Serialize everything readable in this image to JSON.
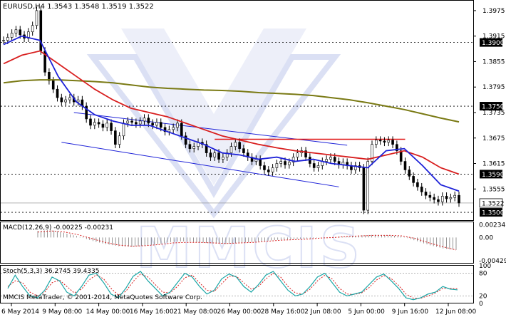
{
  "title": "EURUSD,H4  1.3543 1.3548 1.3519 1.3522",
  "colors": {
    "ma_fast": "#1e22d8",
    "ma_mid": "#d81e1e",
    "ma_slow": "#7a7a14",
    "level_label_bg": "#000000",
    "current_label_bg": "#ffffff",
    "channel": "#1e22d8",
    "resistance": "#e01414",
    "macd_signal": "#d81e1e",
    "stoch_main": "#1aa6a6",
    "stoch_signal": "#d81e1e",
    "watermark": "#9aa8e0"
  },
  "watermark": "MMCIS",
  "footer": "MMCIS MetaTrader, © 2001-2014, MetaQuotes Software Corp.",
  "price_panel": {
    "ticks": [
      "1.3975",
      "1.3915",
      "1.3855",
      "1.3795",
      "1.3735",
      "1.3675",
      "1.3615",
      "1.3555"
    ],
    "levels": [
      {
        "label": "1.3900",
        "value": 1.39
      },
      {
        "label": "1.3750",
        "value": 1.375
      },
      {
        "label": "1.3590",
        "value": 1.359
      },
      {
        "label": "1.3500",
        "value": 1.35
      }
    ],
    "current": {
      "label": "1.3522",
      "value": 1.3522
    }
  },
  "macd_panel": {
    "label": "MACD(12,26,9) -0.00225 -0.00231",
    "ticks": [
      "0.00234",
      "0.00",
      "-0.00429"
    ]
  },
  "stoch_panel": {
    "label": "Stoch(5,3,3) 36.2745 39.4335",
    "ticks": [
      "100",
      "80",
      "20",
      "0"
    ]
  },
  "x_axis": [
    "6 May 2014",
    "9 May 08:00",
    "14 May 00:00",
    "16 May 16:00",
    "21 May 08:00",
    "26 May 00:00",
    "28 May 16:00",
    "2 Jun 08:00",
    "5 Jun 00:00",
    "9 Jun 16:00",
    "12 Jun 08:00"
  ],
  "chart_data": {
    "type": "line",
    "symbol": "EURUSD",
    "timeframe": "H4",
    "ohlc_last": {
      "open": 1.3543,
      "high": 1.3548,
      "low": 1.3519,
      "close": 1.3522
    },
    "close_path": [
      1.3905,
      1.3912,
      1.3922,
      1.393,
      1.3918,
      1.391,
      1.3925,
      1.394,
      1.3975,
      1.388,
      1.383,
      1.381,
      1.379,
      1.377,
      1.376,
      1.3765,
      1.377,
      1.376,
      1.3765,
      1.375,
      1.372,
      1.3705,
      1.3712,
      1.3708,
      1.37,
      1.371,
      1.3692,
      1.366,
      1.368,
      1.371,
      1.3715,
      1.3712,
      1.3708,
      1.3715,
      1.3722,
      1.371,
      1.3705,
      1.3712,
      1.37,
      1.369,
      1.3695,
      1.37,
      1.371,
      1.368,
      1.366,
      1.365,
      1.3655,
      1.3665,
      1.366,
      1.364,
      1.363,
      1.364,
      1.3625,
      1.363,
      1.364,
      1.3655,
      1.3665,
      1.365,
      1.364,
      1.363,
      1.362,
      1.3625,
      1.361,
      1.36,
      1.3595,
      1.3605,
      1.3615,
      1.362,
      1.3612,
      1.3618,
      1.363,
      1.364,
      1.3645,
      1.363,
      1.3615,
      1.3605,
      1.361,
      1.362,
      1.3625,
      1.363,
      1.362,
      1.3612,
      1.3618,
      1.361,
      1.36,
      1.361,
      1.3605,
      1.3505,
      1.362,
      1.366,
      1.367,
      1.3668,
      1.3665,
      1.367,
      1.366,
      1.3645,
      1.362,
      1.36,
      1.3585,
      1.357,
      1.356,
      1.3548,
      1.354,
      1.3535,
      1.353,
      1.3525,
      1.3538,
      1.3532,
      1.3535,
      1.354,
      1.3522
    ],
    "ma_fast": [
      1.3895,
      1.3915,
      1.3905,
      1.382,
      1.376,
      1.373,
      1.3715,
      1.3705,
      1.3705,
      1.369,
      1.3675,
      1.366,
      1.364,
      1.3635,
      1.3625,
      1.363,
      1.362,
      1.3625,
      1.3615,
      1.361,
      1.3605,
      1.3645,
      1.365,
      1.361,
      1.3565,
      1.355
    ],
    "ma_mid": [
      1.385,
      1.387,
      1.388,
      1.385,
      1.382,
      1.379,
      1.3765,
      1.3745,
      1.3735,
      1.3725,
      1.371,
      1.3695,
      1.368,
      1.367,
      1.366,
      1.3652,
      1.3645,
      1.364,
      1.3635,
      1.363,
      1.3625,
      1.3635,
      1.3645,
      1.363,
      1.3605,
      1.359
    ],
    "ma_slow": [
      1.3805,
      1.381,
      1.3812,
      1.3812,
      1.381,
      1.3808,
      1.3805,
      1.38,
      1.3795,
      1.3792,
      1.379,
      1.3788,
      1.3787,
      1.3785,
      1.3782,
      1.378,
      1.3778,
      1.3775,
      1.377,
      1.3765,
      1.3758,
      1.375,
      1.3742,
      1.3732,
      1.3722,
      1.3713
    ],
    "macd_hist": [
      0.0012,
      0.0014,
      0.0008,
      0.0002,
      -0.0006,
      -0.0012,
      -0.0016,
      -0.0017,
      -0.0015,
      -0.0012,
      -0.0008,
      -0.0007,
      -0.0009,
      -0.0011,
      -0.0012,
      -0.001,
      -0.0008,
      -0.0006,
      -0.0004,
      -0.0003,
      -0.0002,
      0.0,
      0.0001,
      0.0002,
      0.0004,
      0.0005,
      0.0004,
      0.0002,
      -0.0006,
      -0.0014,
      -0.002,
      -0.0023
    ],
    "macd_signal": [
      0.001,
      0.0012,
      0.001,
      0.0005,
      -0.0002,
      -0.0009,
      -0.0014,
      -0.0016,
      -0.0015,
      -0.0013,
      -0.001,
      -0.0009,
      -0.0009,
      -0.001,
      -0.0011,
      -0.001,
      -0.0009,
      -0.0007,
      -0.0005,
      -0.0004,
      -0.0003,
      -0.0001,
      0.0,
      0.0002,
      0.0003,
      0.0004,
      0.0004,
      0.0003,
      -0.0002,
      -0.001,
      -0.0017,
      -0.0023
    ],
    "stoch_main": [
      40,
      75,
      45,
      20,
      15,
      35,
      70,
      60,
      30,
      20,
      45,
      75,
      80,
      55,
      25,
      15,
      40,
      72,
      85,
      60,
      40,
      20,
      30,
      55,
      80,
      70,
      45,
      25,
      35,
      65,
      78,
      70,
      45,
      30,
      50,
      75,
      85,
      60,
      35,
      20,
      25,
      45,
      70,
      80,
      55,
      30,
      20,
      25,
      30,
      50,
      70,
      78,
      60,
      40,
      15,
      10,
      15,
      25,
      30,
      45,
      38,
      36
    ],
    "stoch_signal": [
      45,
      60,
      55,
      30,
      20,
      30,
      55,
      62,
      45,
      28,
      38,
      62,
      76,
      65,
      40,
      22,
      32,
      58,
      78,
      70,
      50,
      30,
      28,
      45,
      68,
      75,
      55,
      35,
      32,
      52,
      72,
      72,
      55,
      38,
      45,
      65,
      80,
      70,
      45,
      28,
      25,
      38,
      60,
      75,
      65,
      40,
      25,
      24,
      28,
      42,
      62,
      74,
      66,
      48,
      25,
      14,
      14,
      20,
      28,
      40,
      40,
      39
    ]
  }
}
